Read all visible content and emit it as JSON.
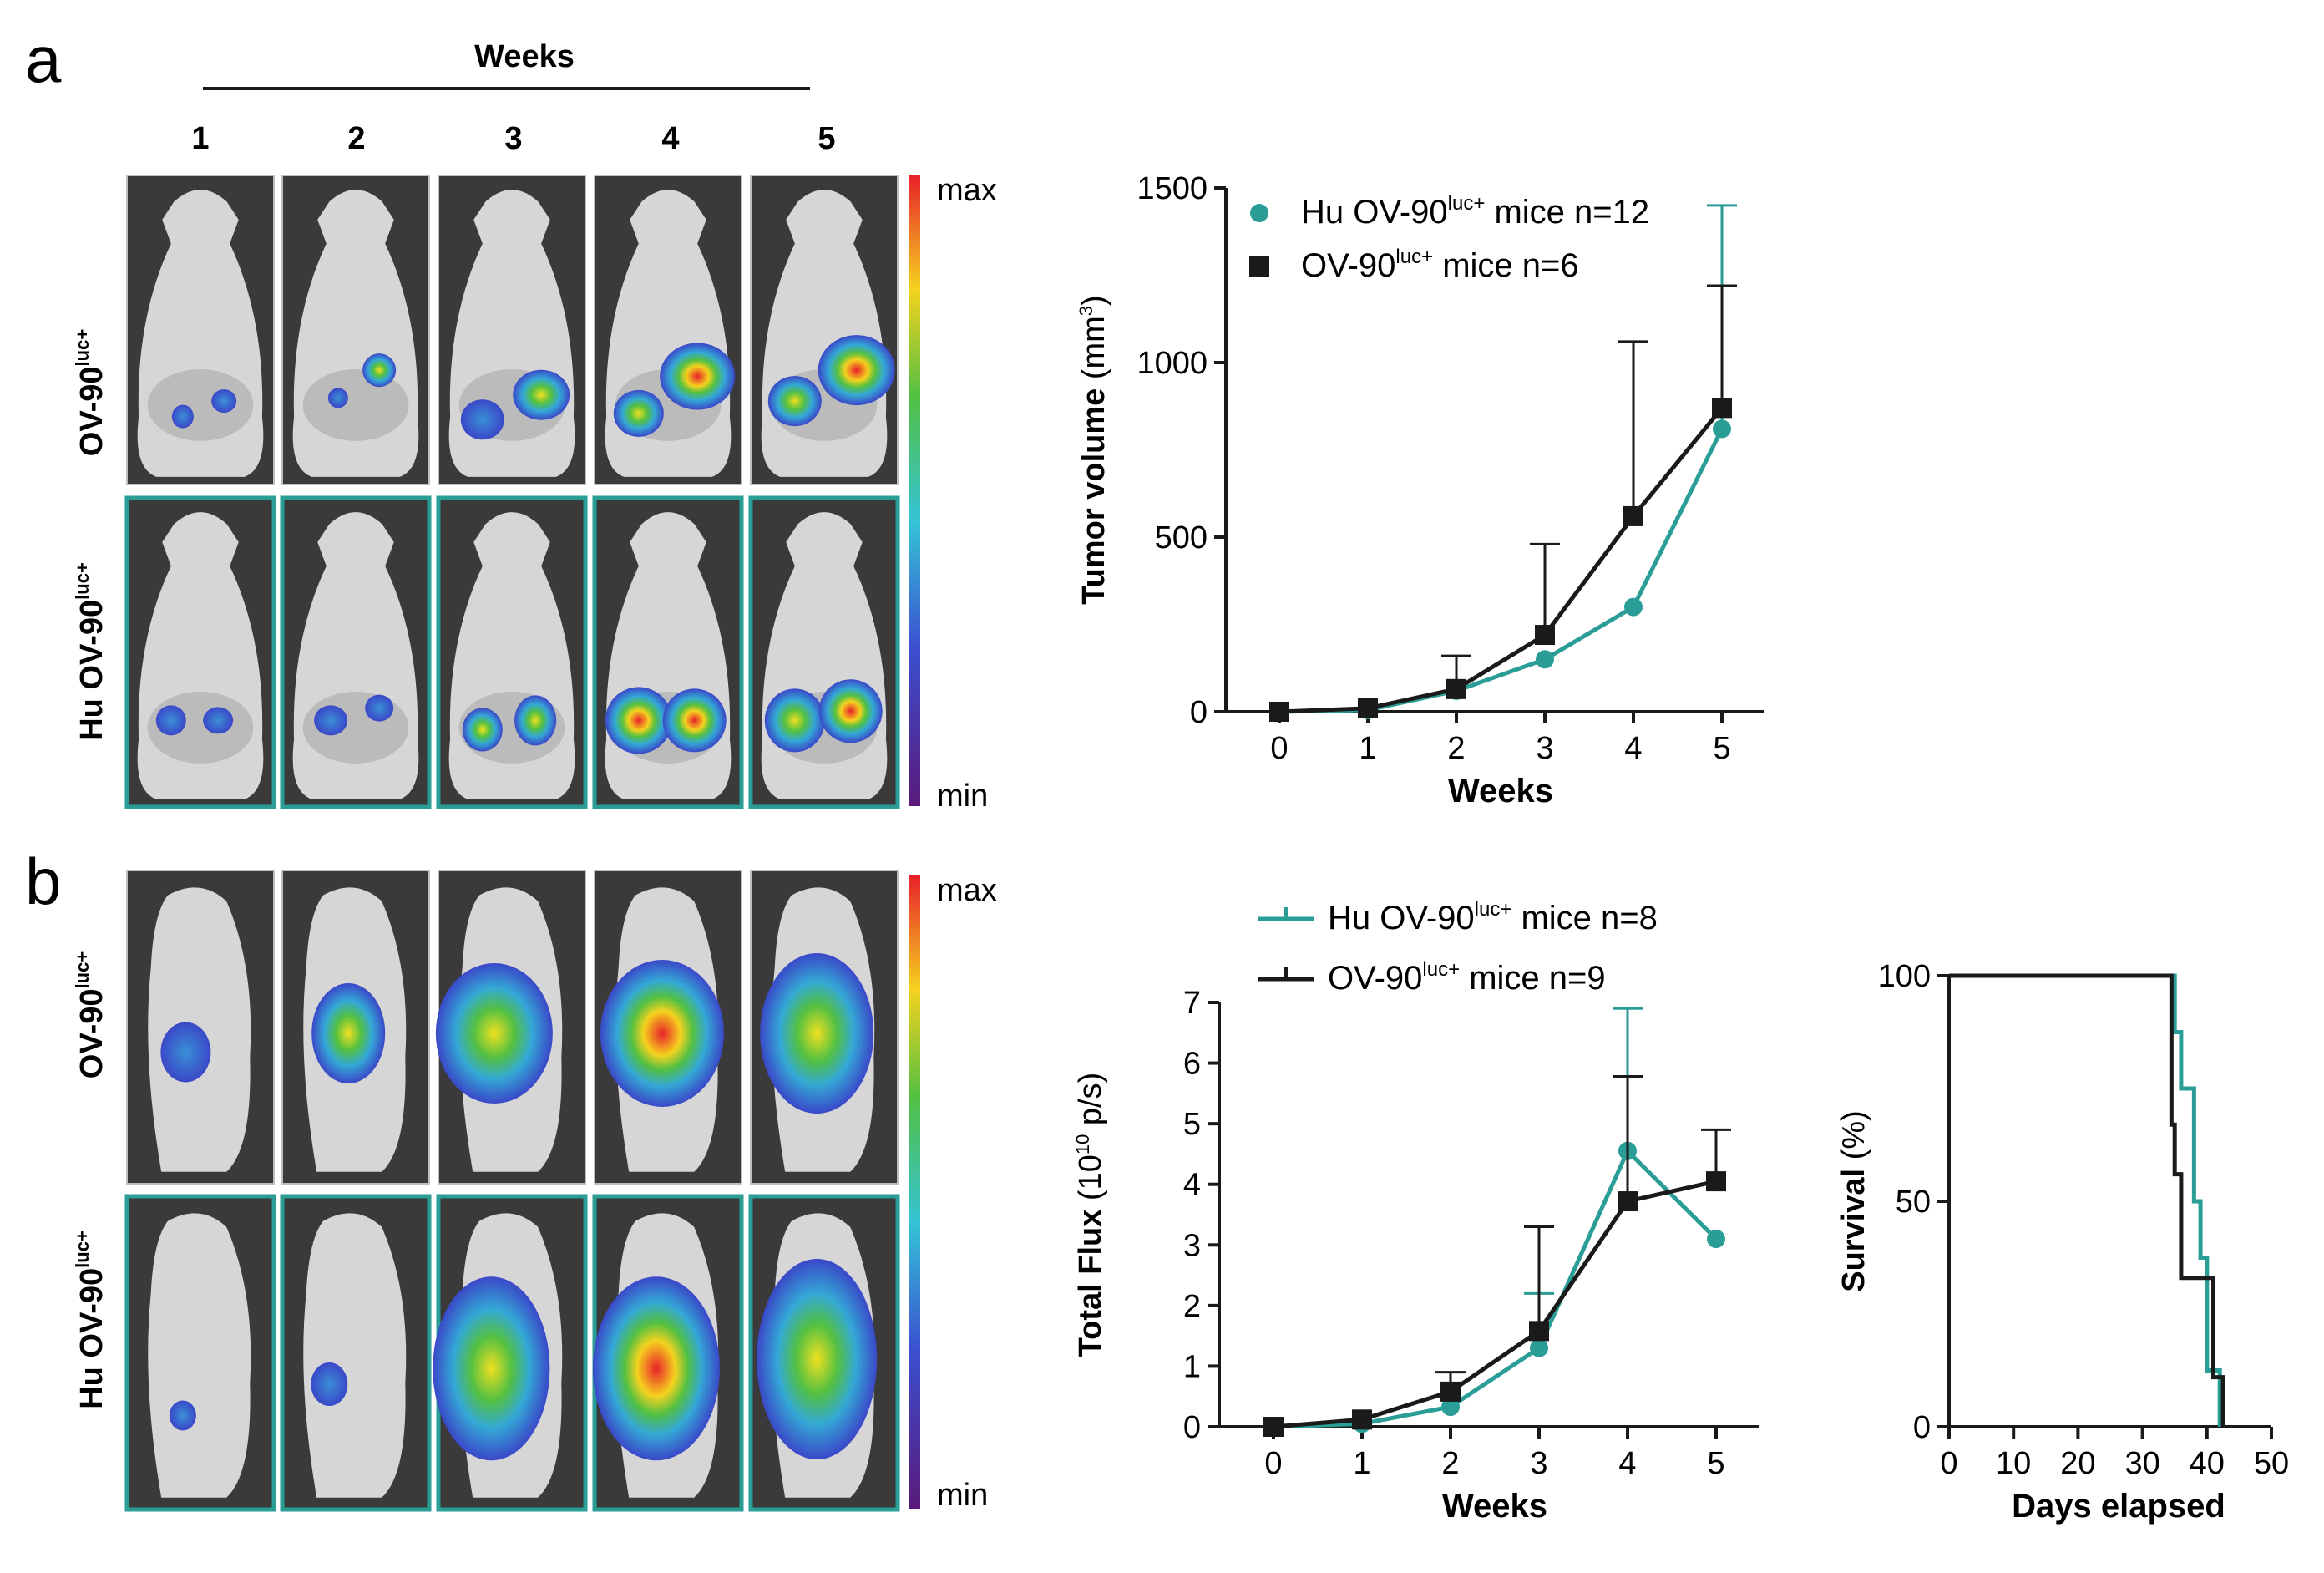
{
  "colors": {
    "teal": "#2a9d96",
    "black": "#1a1a1a",
    "img_bg": "#3a3a3a",
    "mouse": "#d6d6d6"
  },
  "panel_a": {
    "label": "a",
    "weeks_title": "Weeks",
    "week_numbers": [
      "1",
      "2",
      "3",
      "4",
      "5"
    ],
    "row_labels": [
      {
        "base": "OV-90",
        "sup": "luc+"
      },
      {
        "prefix": "Hu ",
        "base": "OV-90",
        "sup": "luc+"
      }
    ],
    "scale": {
      "max": "max",
      "min": "min"
    }
  },
  "panel_b": {
    "label": "b",
    "row_labels": [
      {
        "base": "OV-90",
        "sup": "luc+"
      },
      {
        "prefix": "Hu ",
        "base": "OV-90",
        "sup": "luc+"
      }
    ],
    "scale": {
      "max": "max",
      "min": "min"
    }
  },
  "chart_data": [
    {
      "type": "line",
      "id": "tumor-volume",
      "xlabel": "Weeks",
      "ylabel": {
        "main": "Tumor volume",
        "unit_pre": " (mm",
        "unit_sup": "3",
        "unit_post": ")"
      },
      "x": [
        0,
        1,
        2,
        3,
        4,
        5
      ],
      "xlim": [
        0,
        5
      ],
      "ylim": [
        0,
        1500
      ],
      "xticks": [
        "0",
        "1",
        "2",
        "3",
        "4",
        "5"
      ],
      "yticks": [
        0,
        500,
        1000,
        1500
      ],
      "series": [
        {
          "name_prefix": "Hu ",
          "name_base": "OV-90",
          "name_sup": "luc+",
          "name_suffix": " mice n=12",
          "color": "#2a9d96",
          "marker": "circle",
          "values": [
            0,
            5,
            60,
            150,
            300,
            810
          ],
          "error_up": [
            0,
            0,
            0,
            0,
            0,
            1450
          ]
        },
        {
          "name_prefix": "",
          "name_base": "OV-90",
          "name_sup": "luc+",
          "name_suffix": " mice n=6",
          "color": "#1a1a1a",
          "marker": "square",
          "values": [
            0,
            10,
            65,
            220,
            560,
            870
          ],
          "error_up": [
            0,
            0,
            160,
            480,
            1060,
            1220
          ]
        }
      ]
    },
    {
      "type": "line",
      "id": "total-flux",
      "xlabel": "Weeks",
      "ylabel": {
        "main": "Total Flux",
        "unit_pre": " (10",
        "unit_sup": "10",
        "unit_post": " p/s)"
      },
      "x": [
        0,
        1,
        2,
        3,
        4,
        5
      ],
      "xlim": [
        0,
        5
      ],
      "ylim": [
        0,
        7
      ],
      "xticks": [
        "0",
        "1",
        "2",
        "3",
        "4",
        "5"
      ],
      "yticks": [
        0,
        1,
        2,
        3,
        4,
        5,
        6,
        7
      ],
      "series": [
        {
          "name_prefix": "Hu ",
          "name_base": "OV-90",
          "name_sup": "luc+",
          "name_suffix": " mice n=8",
          "color": "#2a9d96",
          "marker": "circle",
          "values": [
            0,
            0.05,
            0.33,
            1.3,
            4.55,
            3.1
          ],
          "error_up": [
            0,
            0,
            0,
            2.2,
            6.9,
            0
          ]
        },
        {
          "name_prefix": "",
          "name_base": "OV-90",
          "name_sup": "luc+",
          "name_suffix": " mice n=9",
          "color": "#1a1a1a",
          "marker": "square",
          "values": [
            0,
            0.12,
            0.58,
            1.58,
            3.72,
            4.05
          ],
          "error_up": [
            0,
            0,
            0.9,
            3.3,
            5.78,
            4.9
          ]
        }
      ]
    },
    {
      "type": "step",
      "id": "survival",
      "xlabel": "Days elapsed",
      "ylabel": {
        "main": "Survival",
        "unit_pre": " (%)",
        "unit_sup": "",
        "unit_post": ""
      },
      "xlim": [
        0,
        50
      ],
      "ylim": [
        0,
        100
      ],
      "xticks": [
        0,
        10,
        20,
        30,
        40,
        50
      ],
      "yticks": [
        0,
        50,
        100
      ],
      "series": [
        {
          "name": "Hu OV-90luc+",
          "color": "#2a9d96",
          "steps": [
            [
              0,
              100
            ],
            [
              35,
              100
            ],
            [
              35,
              87.5
            ],
            [
              36,
              87.5
            ],
            [
              36,
              75
            ],
            [
              38,
              75
            ],
            [
              38,
              50
            ],
            [
              39,
              50
            ],
            [
              39,
              37.5
            ],
            [
              40,
              37.5
            ],
            [
              40,
              12.5
            ],
            [
              42,
              12.5
            ],
            [
              42,
              0
            ]
          ]
        },
        {
          "name": "OV-90luc+",
          "color": "#1a1a1a",
          "steps": [
            [
              0,
              100
            ],
            [
              34.5,
              100
            ],
            [
              34.5,
              67
            ],
            [
              35,
              67
            ],
            [
              35,
              56
            ],
            [
              36,
              56
            ],
            [
              36,
              33
            ],
            [
              41,
              33
            ],
            [
              41,
              11
            ],
            [
              42.5,
              11
            ],
            [
              42.5,
              0
            ]
          ]
        }
      ]
    }
  ]
}
